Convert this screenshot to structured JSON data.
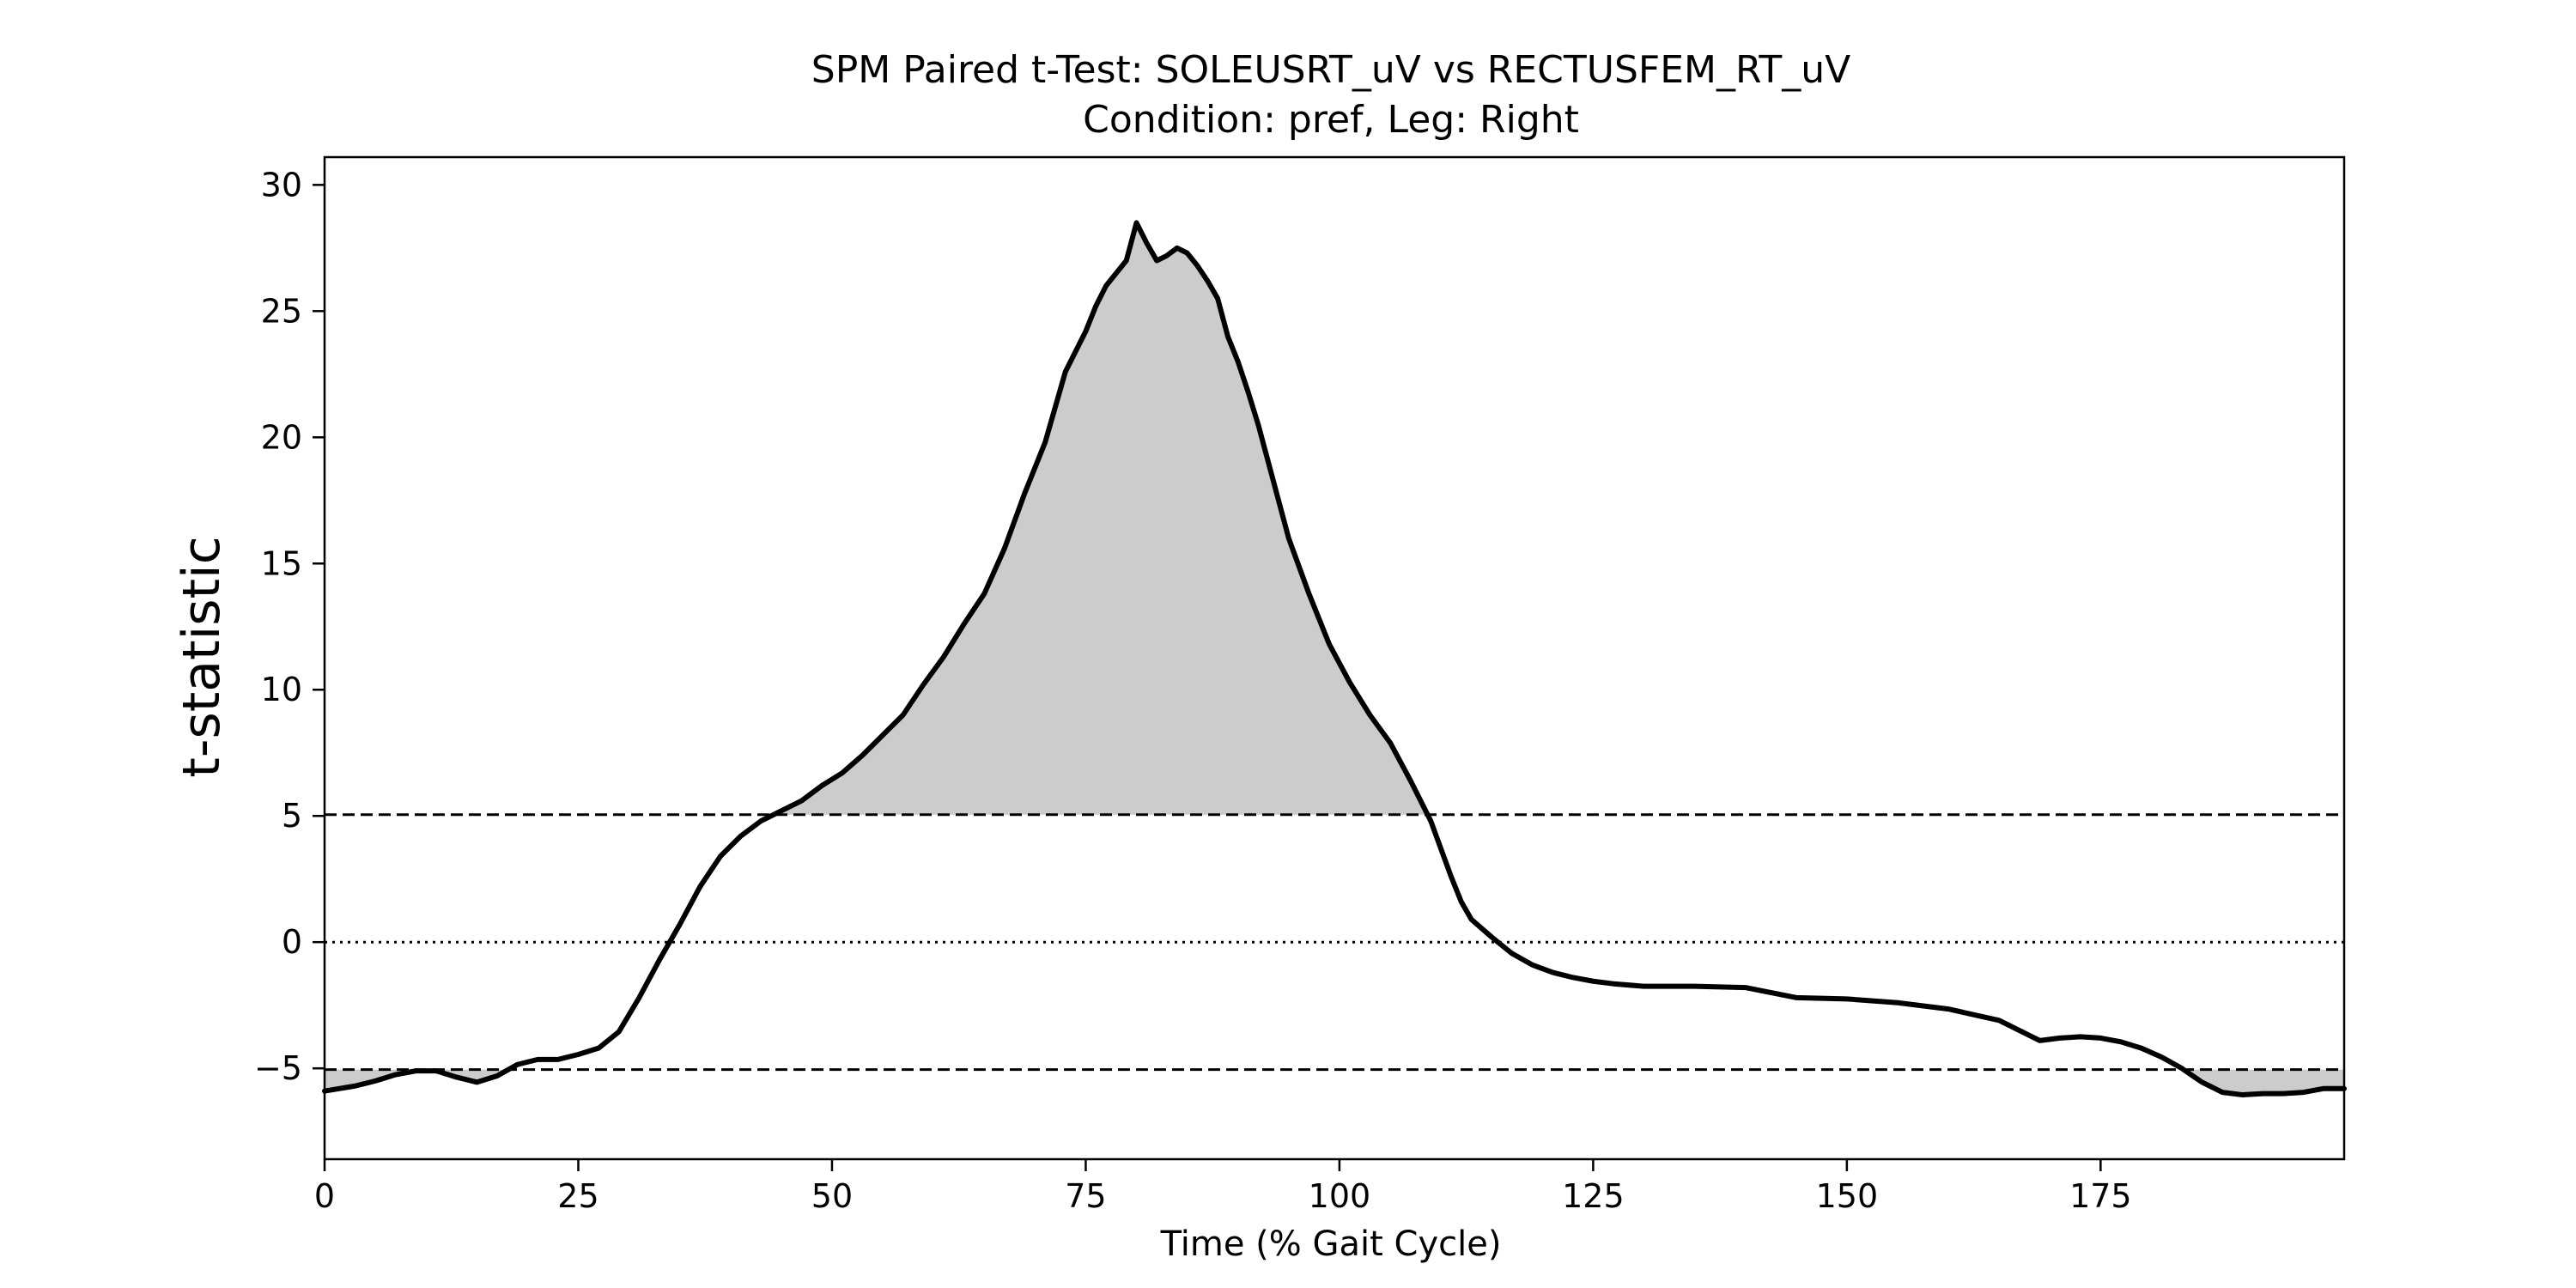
{
  "chart_data": {
    "type": "line",
    "title": "SPM Paired t-Test: SOLEUSRT_uV vs RECTUSFEM_RT_uV",
    "subtitle": "Condition: pref, Leg: Right",
    "xlabel": "Time (% Gait Cycle)",
    "ylabel": "t-statistic",
    "xlim": [
      0,
      199
    ],
    "ylim": [
      -8.6,
      31.1
    ],
    "xticks": [
      0,
      25,
      50,
      75,
      100,
      125,
      150,
      175
    ],
    "yticks": [
      30,
      25,
      20,
      15,
      10,
      5,
      0,
      -5
    ],
    "ytick_labels": [
      "30",
      "25",
      "20",
      "15",
      "10",
      "5",
      "0",
      "−5"
    ],
    "threshold_upper": 5.05,
    "threshold_lower": -5.05,
    "zero_line": 0,
    "grid": false,
    "line_color": "#000000",
    "fill_color": "#cccccc",
    "series": [
      {
        "x": [
          0,
          3,
          5,
          7,
          9,
          11,
          13,
          15,
          17,
          19,
          21,
          23,
          25,
          27,
          29,
          31,
          33,
          35,
          37,
          39,
          41,
          43,
          45,
          47,
          49,
          51,
          53,
          55,
          57,
          59,
          61,
          63,
          65,
          67,
          69,
          71,
          73,
          75,
          76,
          77,
          79,
          80,
          81,
          82,
          83,
          84,
          85,
          86,
          87,
          88,
          89,
          90,
          91,
          92,
          93,
          94,
          95,
          97,
          99,
          101,
          103,
          105,
          107,
          109,
          111,
          112,
          113,
          115,
          117,
          119,
          121,
          123,
          125,
          127,
          130,
          135,
          140,
          145,
          150,
          155,
          160,
          165,
          167,
          169,
          171,
          173,
          175,
          177,
          179,
          181,
          183,
          185,
          187,
          189,
          191,
          193,
          195,
          197,
          199
        ],
        "y": [
          -5.9,
          -5.7,
          -5.5,
          -5.25,
          -5.1,
          -5.1,
          -5.35,
          -5.55,
          -5.3,
          -4.85,
          -4.65,
          -4.65,
          -4.45,
          -4.2,
          -3.55,
          -2.2,
          -0.7,
          0.7,
          2.2,
          3.4,
          4.2,
          4.8,
          5.2,
          5.6,
          6.2,
          6.7,
          7.4,
          8.2,
          9.0,
          10.2,
          11.3,
          12.6,
          13.8,
          15.6,
          17.8,
          19.8,
          22.6,
          24.2,
          25.2,
          26.0,
          27.0,
          28.5,
          27.7,
          27.0,
          27.2,
          27.5,
          27.3,
          26.8,
          26.2,
          25.5,
          24.0,
          23.0,
          21.8,
          20.5,
          19.0,
          17.5,
          16.0,
          13.8,
          11.8,
          10.3,
          9.0,
          7.9,
          6.4,
          4.8,
          2.6,
          1.6,
          0.9,
          0.2,
          -0.45,
          -0.9,
          -1.2,
          -1.4,
          -1.55,
          -1.65,
          -1.75,
          -1.75,
          -1.8,
          -2.2,
          -2.25,
          -2.4,
          -2.65,
          -3.1,
          -3.5,
          -3.9,
          -3.8,
          -3.75,
          -3.8,
          -3.95,
          -4.2,
          -4.55,
          -5.0,
          -5.55,
          -5.95,
          -6.05,
          -6.0,
          -6.0,
          -5.95,
          -5.8,
          -5.8
        ]
      }
    ]
  }
}
